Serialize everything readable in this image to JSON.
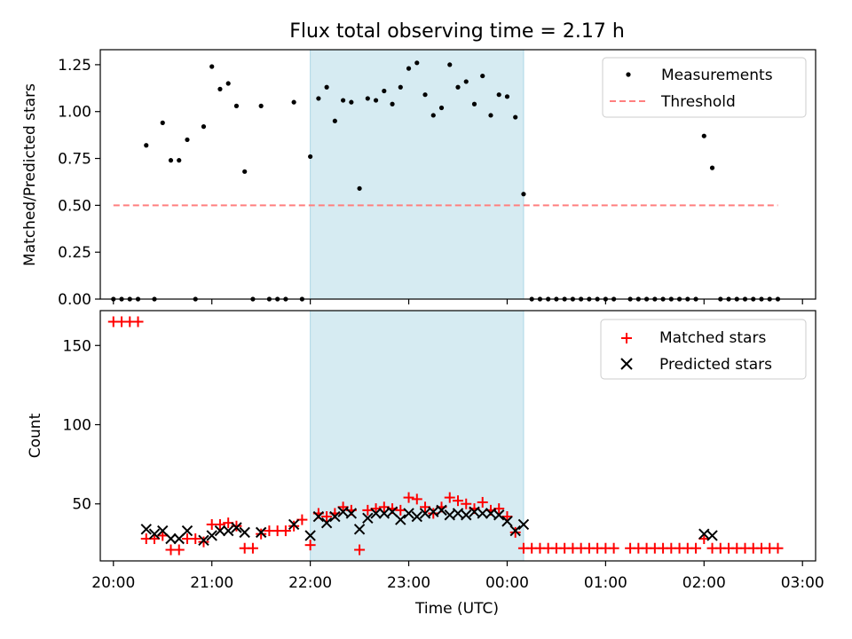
{
  "chart_data": [
    {
      "type": "scatter",
      "title": "Flux total observing time = 2.17 h",
      "xlabel": "",
      "ylabel": "Matched/Predicted stars",
      "xlim": [
        "19:52",
        "03:08"
      ],
      "ylim": [
        0,
        1.33
      ],
      "yticks": [
        "0.00",
        "0.25",
        "0.50",
        "0.75",
        "1.00",
        "1.25"
      ],
      "shaded_span": [
        "22:00",
        "00:10"
      ],
      "legend_position": "upper-right",
      "series": [
        {
          "name": "Measurements",
          "marker": "dot",
          "color": "#000000",
          "points": [
            [
              "20:00",
              0
            ],
            [
              "20:05",
              0
            ],
            [
              "20:10",
              0
            ],
            [
              "20:15",
              0
            ],
            [
              "20:20",
              0.82
            ],
            [
              "20:25",
              0
            ],
            [
              "20:30",
              0.94
            ],
            [
              "20:35",
              0.74
            ],
            [
              "20:40",
              0.74
            ],
            [
              "20:45",
              0.85
            ],
            [
              "20:50",
              0
            ],
            [
              "20:55",
              0.92
            ],
            [
              "21:00",
              1.24
            ],
            [
              "21:05",
              1.12
            ],
            [
              "21:10",
              1.15
            ],
            [
              "21:15",
              1.03
            ],
            [
              "21:20",
              0.68
            ],
            [
              "21:25",
              0
            ],
            [
              "21:30",
              1.03
            ],
            [
              "21:35",
              0
            ],
            [
              "21:40",
              0
            ],
            [
              "21:45",
              0
            ],
            [
              "21:50",
              1.05
            ],
            [
              "21:55",
              0
            ],
            [
              "22:00",
              0.76
            ],
            [
              "22:05",
              1.07
            ],
            [
              "22:10",
              1.13
            ],
            [
              "22:15",
              0.95
            ],
            [
              "22:20",
              1.06
            ],
            [
              "22:25",
              1.05
            ],
            [
              "22:30",
              0.59
            ],
            [
              "22:35",
              1.07
            ],
            [
              "22:40",
              1.06
            ],
            [
              "22:45",
              1.11
            ],
            [
              "22:50",
              1.04
            ],
            [
              "22:55",
              1.13
            ],
            [
              "23:00",
              1.23
            ],
            [
              "23:05",
              1.26
            ],
            [
              "23:10",
              1.09
            ],
            [
              "23:15",
              0.98
            ],
            [
              "23:20",
              1.02
            ],
            [
              "23:25",
              1.25
            ],
            [
              "23:30",
              1.13
            ],
            [
              "23:35",
              1.16
            ],
            [
              "23:40",
              1.04
            ],
            [
              "23:45",
              1.19
            ],
            [
              "23:50",
              0.98
            ],
            [
              "23:55",
              1.09
            ],
            [
              "00:00",
              1.08
            ],
            [
              "00:05",
              0.97
            ],
            [
              "00:10",
              0.56
            ],
            [
              "00:15",
              0
            ],
            [
              "00:20",
              0
            ],
            [
              "00:25",
              0
            ],
            [
              "00:30",
              0
            ],
            [
              "00:35",
              0
            ],
            [
              "00:40",
              0
            ],
            [
              "00:45",
              0
            ],
            [
              "00:50",
              0
            ],
            [
              "00:55",
              0
            ],
            [
              "01:00",
              0
            ],
            [
              "01:05",
              0
            ],
            [
              "01:15",
              0
            ],
            [
              "01:20",
              0
            ],
            [
              "01:25",
              0
            ],
            [
              "01:30",
              0
            ],
            [
              "01:35",
              0
            ],
            [
              "01:40",
              0
            ],
            [
              "01:45",
              0
            ],
            [
              "01:50",
              0
            ],
            [
              "01:55",
              0
            ],
            [
              "02:00",
              0.87
            ],
            [
              "02:05",
              0.7
            ],
            [
              "02:10",
              0
            ],
            [
              "02:15",
              0
            ],
            [
              "02:20",
              0
            ],
            [
              "02:25",
              0
            ],
            [
              "02:30",
              0
            ],
            [
              "02:35",
              0
            ],
            [
              "02:40",
              0
            ],
            [
              "02:45",
              0
            ]
          ]
        },
        {
          "name": "Threshold",
          "marker": "dashed-line",
          "color": "#ff7f7f",
          "points": [
            [
              "20:00",
              0.5
            ],
            [
              "02:45",
              0.5
            ]
          ]
        }
      ]
    },
    {
      "type": "scatter",
      "title": "",
      "xlabel": "Time (UTC)",
      "ylabel": "Count",
      "xlim": [
        "19:52",
        "03:08"
      ],
      "ylim": [
        14,
        172
      ],
      "yticks": [
        "50",
        "100",
        "150"
      ],
      "xticks": [
        "20:00",
        "21:00",
        "22:00",
        "23:00",
        "00:00",
        "01:00",
        "02:00",
        "03:00"
      ],
      "shaded_span": [
        "22:00",
        "00:10"
      ],
      "legend_position": "upper-right",
      "series": [
        {
          "name": "Matched stars",
          "marker": "plus",
          "color": "#ff0000",
          "points": [
            [
              "20:00",
              165
            ],
            [
              "20:05",
              165
            ],
            [
              "20:10",
              165
            ],
            [
              "20:15",
              165
            ],
            [
              "20:20",
              28
            ],
            [
              "20:25",
              28
            ],
            [
              "20:30",
              30
            ],
            [
              "20:35",
              21
            ],
            [
              "20:40",
              21
            ],
            [
              "20:45",
              28
            ],
            [
              "20:50",
              28
            ],
            [
              "20:55",
              26
            ],
            [
              "21:00",
              37
            ],
            [
              "21:05",
              37
            ],
            [
              "21:10",
              38
            ],
            [
              "21:15",
              36
            ],
            [
              "21:20",
              22
            ],
            [
              "21:25",
              22
            ],
            [
              "21:30",
              31
            ],
            [
              "21:35",
              33
            ],
            [
              "21:40",
              33
            ],
            [
              "21:45",
              33
            ],
            [
              "21:50",
              36
            ],
            [
              "21:55",
              40
            ],
            [
              "22:00",
              24
            ],
            [
              "22:05",
              44
            ],
            [
              "22:10",
              42
            ],
            [
              "22:15",
              44
            ],
            [
              "22:20",
              48
            ],
            [
              "22:25",
              46
            ],
            [
              "22:30",
              21
            ],
            [
              "22:35",
              46
            ],
            [
              "22:40",
              47
            ],
            [
              "22:45",
              48
            ],
            [
              "22:50",
              47
            ],
            [
              "22:55",
              46
            ],
            [
              "23:00",
              54
            ],
            [
              "23:05",
              53
            ],
            [
              "23:10",
              48
            ],
            [
              "23:15",
              44
            ],
            [
              "23:20",
              48
            ],
            [
              "23:25",
              54
            ],
            [
              "23:30",
              52
            ],
            [
              "23:35",
              50
            ],
            [
              "23:40",
              47
            ],
            [
              "23:45",
              51
            ],
            [
              "23:50",
              46
            ],
            [
              "23:55",
              47
            ],
            [
              "00:00",
              42
            ],
            [
              "00:05",
              32
            ],
            [
              "00:10",
              22
            ],
            [
              "00:15",
              22
            ],
            [
              "00:20",
              22
            ],
            [
              "00:25",
              22
            ],
            [
              "00:30",
              22
            ],
            [
              "00:35",
              22
            ],
            [
              "00:40",
              22
            ],
            [
              "00:45",
              22
            ],
            [
              "00:50",
              22
            ],
            [
              "00:55",
              22
            ],
            [
              "01:00",
              22
            ],
            [
              "01:05",
              22
            ],
            [
              "01:15",
              22
            ],
            [
              "01:20",
              22
            ],
            [
              "01:25",
              22
            ],
            [
              "01:30",
              22
            ],
            [
              "01:35",
              22
            ],
            [
              "01:40",
              22
            ],
            [
              "01:45",
              22
            ],
            [
              "01:50",
              22
            ],
            [
              "01:55",
              22
            ],
            [
              "02:00",
              28
            ],
            [
              "02:05",
              22
            ],
            [
              "02:10",
              22
            ],
            [
              "02:15",
              22
            ],
            [
              "02:20",
              22
            ],
            [
              "02:25",
              22
            ],
            [
              "02:30",
              22
            ],
            [
              "02:35",
              22
            ],
            [
              "02:40",
              22
            ],
            [
              "02:45",
              22
            ]
          ]
        },
        {
          "name": "Predicted stars",
          "marker": "x",
          "color": "#000000",
          "points": [
            [
              "20:20",
              34
            ],
            [
              "20:25",
              31
            ],
            [
              "20:30",
              33
            ],
            [
              "20:35",
              28
            ],
            [
              "20:40",
              28
            ],
            [
              "20:45",
              33
            ],
            [
              "20:55",
              27
            ],
            [
              "21:00",
              30
            ],
            [
              "21:05",
              33
            ],
            [
              "21:10",
              33
            ],
            [
              "21:15",
              35
            ],
            [
              "21:20",
              32
            ],
            [
              "21:30",
              32
            ],
            [
              "21:50",
              37
            ],
            [
              "22:00",
              30
            ],
            [
              "22:05",
              42
            ],
            [
              "22:10",
              38
            ],
            [
              "22:15",
              42
            ],
            [
              "22:20",
              45
            ],
            [
              "22:25",
              44
            ],
            [
              "22:30",
              34
            ],
            [
              "22:35",
              41
            ],
            [
              "22:40",
              44
            ],
            [
              "22:45",
              44
            ],
            [
              "22:50",
              45
            ],
            [
              "22:55",
              40
            ],
            [
              "23:00",
              44
            ],
            [
              "23:05",
              42
            ],
            [
              "23:10",
              44
            ],
            [
              "23:15",
              45
            ],
            [
              "23:20",
              46
            ],
            [
              "23:25",
              43
            ],
            [
              "23:30",
              44
            ],
            [
              "23:35",
              43
            ],
            [
              "23:40",
              45
            ],
            [
              "23:45",
              44
            ],
            [
              "23:50",
              44
            ],
            [
              "23:55",
              43
            ],
            [
              "00:00",
              39
            ],
            [
              "00:05",
              33
            ],
            [
              "00:10",
              37
            ],
            [
              "02:00",
              31
            ],
            [
              "02:05",
              30
            ]
          ]
        }
      ]
    }
  ]
}
